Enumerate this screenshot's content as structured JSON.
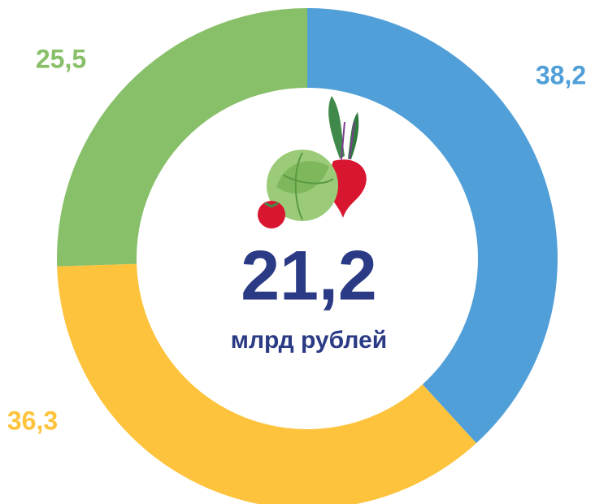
{
  "chart_data": {
    "type": "donut",
    "categories": [
      null,
      null,
      null
    ],
    "series": [
      {
        "name": null,
        "values": [
          38.2,
          36.3,
          25.5
        ],
        "value_labels": [
          "38,2",
          "36,3",
          "25,5"
        ],
        "colors": [
          "#519fd8",
          "#fec33c",
          "#88c06a"
        ]
      }
    ],
    "annotations": [
      "21,2",
      "млрд рублей"
    ]
  }
}
